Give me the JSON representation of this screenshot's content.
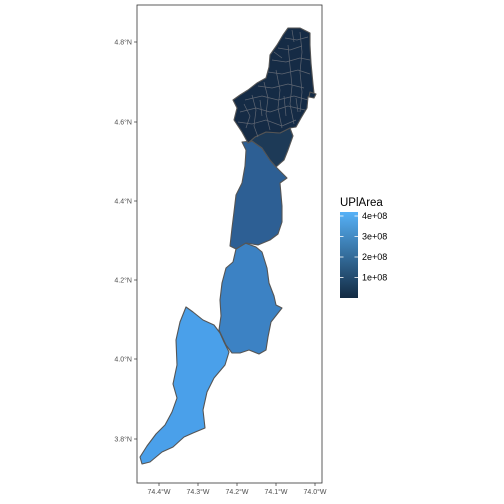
{
  "map": {
    "y_axis_ticks": [
      {
        "value": 4.8,
        "label": "4.8°N"
      },
      {
        "value": 4.6,
        "label": "4.6°N"
      },
      {
        "value": 4.4,
        "label": "4.4°N"
      },
      {
        "value": 4.2,
        "label": "4.2°N"
      },
      {
        "value": 4.0,
        "label": "4.0°N"
      },
      {
        "value": 3.8,
        "label": "3.8°N"
      }
    ],
    "x_axis_ticks": [
      {
        "value": -74.4,
        "label": "74.4°W"
      },
      {
        "value": -74.3,
        "label": "74.3°W"
      },
      {
        "value": -74.2,
        "label": "74.2°W"
      },
      {
        "value": -74.1,
        "label": "74.1°W"
      },
      {
        "value": -74.0,
        "label": "74.0°W"
      }
    ],
    "legend": {
      "title": "UPlArea",
      "placement": "right",
      "labels": [
        {
          "value": 400000000,
          "label": "4e+08"
        },
        {
          "value": 300000000,
          "label": "3e+08"
        },
        {
          "value": 200000000,
          "label": "2e+08"
        },
        {
          "value": 100000000,
          "label": "1e+08"
        }
      ],
      "color_low": "#132B43",
      "color_high": "#56B1F7"
    },
    "regions": [
      {
        "id": "urban-upz",
        "approx_area": 10000000,
        "fill": "#152b45"
      },
      {
        "id": "north-rural",
        "approx_area": 60000000,
        "fill": "#1d3a57"
      },
      {
        "id": "central-rural",
        "approx_area": 245000000,
        "fill": "#2d5f94"
      },
      {
        "id": "south-central-rural",
        "approx_area": 330000000,
        "fill": "#3c82c4"
      },
      {
        "id": "south-rural",
        "approx_area": 420000000,
        "fill": "#4aa0ea"
      }
    ],
    "panel_background": "#ffffff",
    "panel_border": "#333333"
  }
}
